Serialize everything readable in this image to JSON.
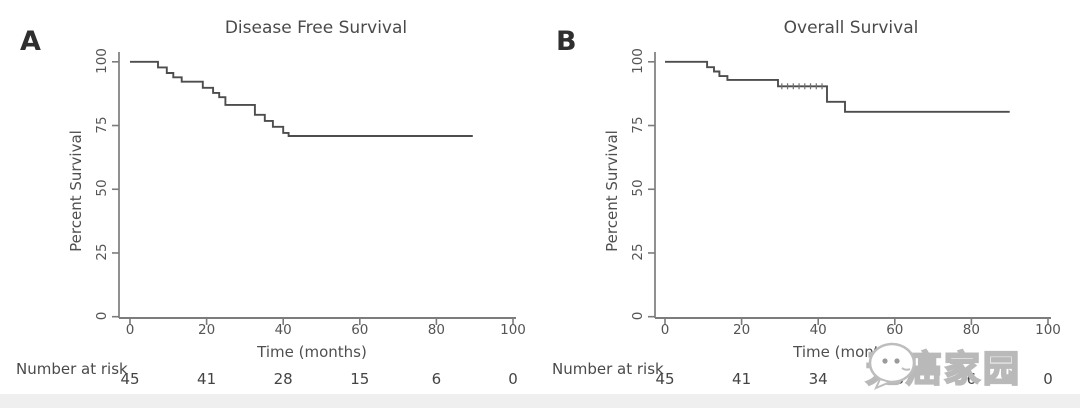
{
  "page": {
    "background": "#ffffff",
    "bottom_band_color": "#efefef"
  },
  "watermark": {
    "icon": "chat-bubble-face-icon",
    "text": "无癌家园"
  },
  "colors": {
    "curve": "#4d4d4d",
    "axis": "#7c7c7c",
    "tick_text": "#555555",
    "title_text": "#4a4a4a"
  },
  "panels": [
    {
      "letter": "A",
      "title": "Disease Free Survival",
      "ylabel": "Percent Survival",
      "xlabel": "Time (months)",
      "risk_label": "Number at risk"
    },
    {
      "letter": "B",
      "title": "Overall Survival",
      "ylabel": "Percent Survival",
      "xlabel": "Time (months)",
      "risk_label": "Number at risk"
    }
  ],
  "chart_data": [
    {
      "type": "line",
      "subtype": "kaplan-meier-step",
      "title": "Disease Free Survival",
      "xlabel": "Time (months)",
      "ylabel": "Percent Survival",
      "xlim": [
        0,
        100
      ],
      "ylim": [
        0,
        100
      ],
      "xticks": [
        0,
        20,
        40,
        60,
        80,
        100
      ],
      "yticks": [
        100,
        75,
        50,
        25,
        0
      ],
      "grid": false,
      "legend": "none",
      "series": [
        {
          "name": "Disease free survival",
          "start_percent": 100,
          "drops": [
            [
              7.3,
              97.8
            ],
            [
              9.6,
              95.6
            ],
            [
              11.3,
              93.9
            ],
            [
              13.5,
              92.2
            ],
            [
              19,
              89.8
            ],
            [
              21.7,
              87.8
            ],
            [
              23.3,
              86.1
            ],
            [
              24.9,
              83.1
            ],
            [
              32.6,
              79.2
            ],
            [
              35.2,
              76.8
            ],
            [
              37.3,
              74.5
            ],
            [
              40,
              72.1
            ],
            [
              41.4,
              70.9
            ]
          ],
          "end_time": 89.5,
          "final_percent": 70.9
        }
      ],
      "censor_times": [],
      "number_at_risk": {
        "times": [
          0,
          20,
          40,
          60,
          80,
          100
        ],
        "counts": [
          45,
          41,
          28,
          15,
          6,
          0
        ]
      }
    },
    {
      "type": "line",
      "subtype": "kaplan-meier-step",
      "title": "Overall Survival",
      "xlabel": "Time (months)",
      "ylabel": "Percent Survival",
      "xlim": [
        0,
        100
      ],
      "ylim": [
        0,
        100
      ],
      "xticks": [
        0,
        20,
        40,
        60,
        80,
        100
      ],
      "yticks": [
        100,
        75,
        50,
        25,
        0
      ],
      "grid": false,
      "legend": "none",
      "series": [
        {
          "name": "Overall survival",
          "start_percent": 100,
          "drops": [
            [
              11,
              97.9
            ],
            [
              12.8,
              96.2
            ],
            [
              14.2,
              94.4
            ],
            [
              16.3,
              92.9
            ],
            [
              29.5,
              90.4
            ],
            [
              42.3,
              84.3
            ],
            [
              47,
              80.4
            ]
          ],
          "end_time": 90,
          "final_percent": 80.4
        }
      ],
      "censor_times": [
        30.5,
        32,
        33.5,
        35,
        36.5,
        38,
        39.5,
        41
      ],
      "number_at_risk": {
        "times": [
          0,
          20,
          40,
          60,
          80,
          100
        ],
        "counts": [
          45,
          41,
          34,
          15,
          6,
          0
        ]
      }
    }
  ]
}
